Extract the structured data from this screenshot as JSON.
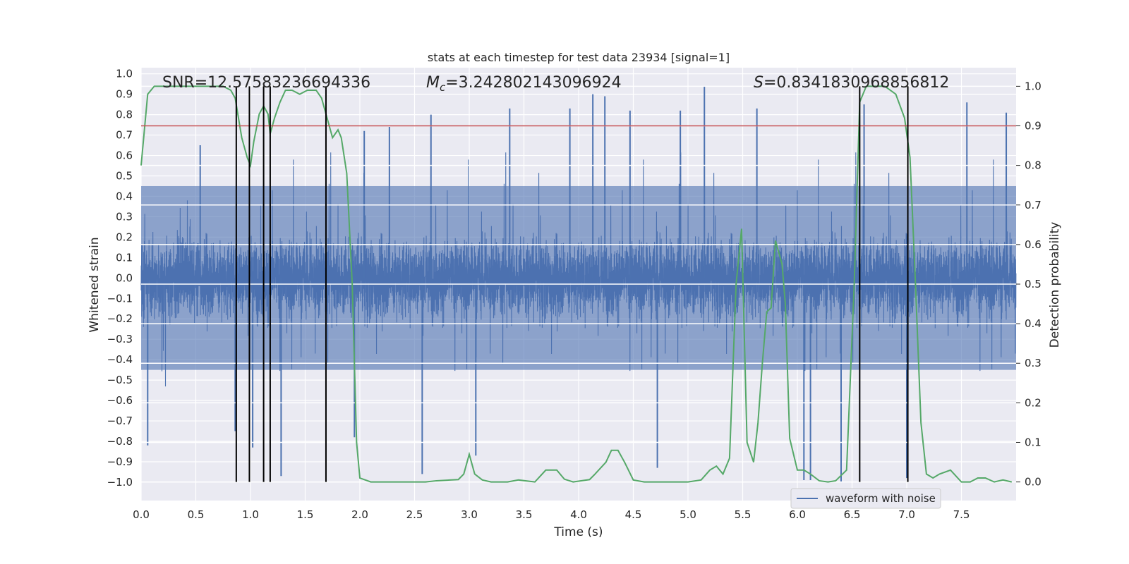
{
  "chart_data": {
    "type": "line",
    "title": "stats at each timestep for test data 23934 [signal=1]",
    "xlabel": "Time (s)",
    "ylabel_left": "Whitened strain",
    "ylabel_right": "Detection probability",
    "xlim": [
      0,
      8
    ],
    "ylim_left": [
      -1.09,
      1.03
    ],
    "ylim_right": [
      -0.047,
      1.047
    ],
    "x_ticks": [
      0.0,
      0.5,
      1.0,
      1.5,
      2.0,
      2.5,
      3.0,
      3.5,
      4.0,
      4.5,
      5.0,
      5.5,
      6.0,
      6.5,
      7.0,
      7.5
    ],
    "x_tick_labels": [
      "0.0",
      "0.5",
      "1.0",
      "1.5",
      "2.0",
      "2.5",
      "3.0",
      "3.5",
      "4.0",
      "4.5",
      "5.0",
      "5.5",
      "6.0",
      "6.5",
      "7.0",
      "7.5"
    ],
    "y_left_ticks": [
      1.0,
      0.9,
      0.8,
      0.7,
      0.6,
      0.5,
      0.4,
      0.3,
      0.2,
      0.1,
      0.0,
      -0.1,
      -0.2,
      -0.3,
      -0.4,
      -0.5,
      -0.6,
      -0.7,
      -0.8,
      -0.9,
      -1.0
    ],
    "y_left_tick_labels": [
      "1.0",
      "0.9",
      "0.8",
      "0.7",
      "0.6",
      "0.5",
      "0.4",
      "0.3",
      "0.2",
      "0.1",
      "0.0",
      "−0.1",
      "−0.2",
      "−0.3",
      "−0.4",
      "−0.5",
      "−0.6",
      "−0.7",
      "−0.8",
      "−0.9",
      "−1.0"
    ],
    "y_right_ticks": [
      1.0,
      0.9,
      0.8,
      0.7,
      0.6,
      0.5,
      0.4,
      0.3,
      0.2,
      0.1,
      0.0
    ],
    "y_right_tick_labels": [
      "1.0",
      "0.9",
      "0.8",
      "0.7",
      "0.6",
      "0.5",
      "0.4",
      "0.3",
      "0.2",
      "0.1",
      "0.0"
    ],
    "grid": true,
    "legend": {
      "position": "lower-right",
      "entries": [
        "waveform with noise"
      ]
    },
    "annotations": {
      "snr": "SNR=12.57583236694336",
      "mc_symbol": "M",
      "mc_subscript": "c",
      "mc_value": "=3.242802143096924",
      "s_symbol": "S",
      "s_value": "=0.8341830968856812"
    },
    "threshold_probability": 0.9,
    "detection_times": [
      0.87,
      0.99,
      1.12,
      1.18,
      1.69,
      6.57,
      7.01
    ],
    "series": [
      {
        "name": "waveform with noise",
        "color": "#4c72b0",
        "axis": "left",
        "n_samples": 8192,
        "typical_envelope": [
          -0.45,
          0.45
        ],
        "peak_range": [
          -1.0,
          0.94
        ],
        "peaks": [
          {
            "t": 0.06,
            "v": -0.82
          },
          {
            "t": 0.54,
            "v": 0.65
          },
          {
            "t": 0.86,
            "v": -0.75
          },
          {
            "t": 1.02,
            "v": -0.83
          },
          {
            "t": 1.28,
            "v": -0.97
          },
          {
            "t": 1.95,
            "v": -0.78
          },
          {
            "t": 2.04,
            "v": 0.72
          },
          {
            "t": 2.27,
            "v": 0.74
          },
          {
            "t": 2.57,
            "v": -0.96
          },
          {
            "t": 2.65,
            "v": 0.8
          },
          {
            "t": 3.06,
            "v": -0.87
          },
          {
            "t": 3.37,
            "v": 0.83
          },
          {
            "t": 3.92,
            "v": 0.83
          },
          {
            "t": 4.13,
            "v": 0.9
          },
          {
            "t": 4.24,
            "v": 0.89
          },
          {
            "t": 4.47,
            "v": 0.82
          },
          {
            "t": 4.72,
            "v": -0.93
          },
          {
            "t": 4.93,
            "v": 0.82
          },
          {
            "t": 5.15,
            "v": 0.94
          },
          {
            "t": 5.63,
            "v": 0.83
          },
          {
            "t": 6.06,
            "v": -0.99
          },
          {
            "t": 6.12,
            "v": -0.99
          },
          {
            "t": 6.4,
            "v": -1.0
          },
          {
            "t": 6.61,
            "v": 0.85
          },
          {
            "t": 7.0,
            "v": -0.98
          },
          {
            "t": 7.55,
            "v": 0.86
          },
          {
            "t": 7.91,
            "v": 0.81
          }
        ]
      },
      {
        "name": "detection probability",
        "color": "#55a868",
        "axis": "right",
        "x": [
          0.0,
          0.06,
          0.12,
          0.2,
          0.3,
          0.45,
          0.6,
          0.7,
          0.75,
          0.82,
          0.86,
          0.92,
          0.97,
          1.0,
          1.03,
          1.08,
          1.12,
          1.16,
          1.18,
          1.22,
          1.27,
          1.32,
          1.38,
          1.45,
          1.52,
          1.6,
          1.65,
          1.7,
          1.75,
          1.8,
          1.83,
          1.88,
          1.93,
          1.97,
          2.0,
          2.1,
          2.3,
          2.5,
          2.6,
          2.7,
          2.9,
          2.95,
          3.0,
          3.05,
          3.12,
          3.2,
          3.35,
          3.45,
          3.6,
          3.7,
          3.8,
          3.87,
          3.95,
          4.1,
          4.15,
          4.25,
          4.3,
          4.36,
          4.42,
          4.5,
          4.6,
          4.8,
          5.0,
          5.12,
          5.2,
          5.26,
          5.32,
          5.38,
          5.44,
          5.49,
          5.54,
          5.6,
          5.64,
          5.68,
          5.72,
          5.76,
          5.8,
          5.86,
          5.89,
          5.93,
          6.0,
          6.06,
          6.12,
          6.2,
          6.28,
          6.35,
          6.45,
          6.52,
          6.57,
          6.6,
          6.63,
          6.7,
          6.8,
          6.9,
          6.98,
          7.03,
          7.08,
          7.13,
          7.18,
          7.24,
          7.3,
          7.4,
          7.5,
          7.58,
          7.65,
          7.72,
          7.8,
          7.88,
          7.96
        ],
        "y": [
          0.8,
          0.98,
          1.0,
          1.0,
          1.0,
          1.0,
          1.0,
          1.0,
          1.0,
          0.99,
          0.97,
          0.87,
          0.82,
          0.8,
          0.86,
          0.93,
          0.95,
          0.93,
          0.88,
          0.92,
          0.96,
          0.99,
          0.99,
          0.98,
          0.99,
          0.99,
          0.97,
          0.92,
          0.87,
          0.89,
          0.87,
          0.78,
          0.5,
          0.1,
          0.01,
          0.0,
          0.0,
          0.0,
          0.0,
          0.003,
          0.006,
          0.02,
          0.07,
          0.02,
          0.005,
          0.0,
          0.0,
          0.005,
          0.0,
          0.03,
          0.03,
          0.007,
          0.0,
          0.006,
          0.02,
          0.05,
          0.08,
          0.08,
          0.05,
          0.005,
          0.0,
          0.0,
          0.0,
          0.005,
          0.03,
          0.04,
          0.02,
          0.06,
          0.5,
          0.64,
          0.1,
          0.05,
          0.15,
          0.3,
          0.43,
          0.44,
          0.61,
          0.55,
          0.45,
          0.11,
          0.03,
          0.03,
          0.02,
          0.003,
          0.0,
          0.003,
          0.03,
          0.5,
          0.96,
          0.98,
          1.0,
          1.0,
          1.0,
          0.98,
          0.92,
          0.82,
          0.5,
          0.15,
          0.02,
          0.01,
          0.02,
          0.03,
          0.0,
          0.0,
          0.01,
          0.01,
          0.0,
          0.005,
          0.0
        ]
      },
      {
        "name": "threshold",
        "color": "#c44e52",
        "axis": "right",
        "value": 0.9
      }
    ]
  }
}
